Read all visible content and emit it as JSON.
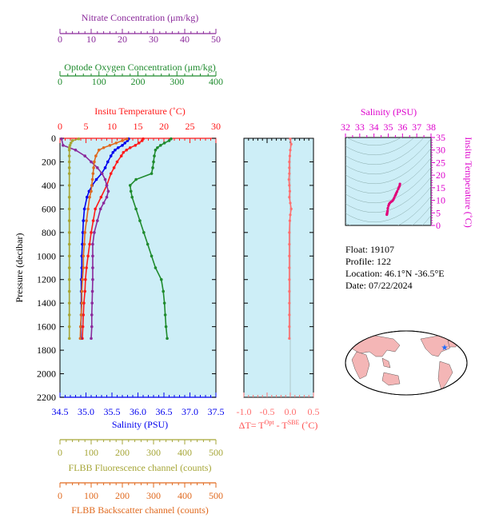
{
  "colors": {
    "nitrate": "#8b2a9b",
    "oxygen": "#1f8b2e",
    "temperature": "#ff1a1a",
    "salinity": "#0000ee",
    "fluorescence": "#a6a637",
    "backscatter": "#e0691e",
    "delta": "#ff7070",
    "panel_bg": "#cdeef7",
    "magenta": "#dd00cc"
  },
  "info": {
    "float_line": "Float:  19107",
    "profile_line": "Profile:  122",
    "location_line": "Location:  46.1°N  -36.5°E",
    "date_line": "Date:  07/22/2024"
  },
  "chart_data": [
    {
      "type": "line",
      "name": "main-profile",
      "ylabel": "Pressure (decibar)",
      "ylim": [
        0,
        2200
      ],
      "y_ticks": [
        "0",
        "200",
        "400",
        "600",
        "800",
        "1000",
        "1200",
        "1400",
        "1600",
        "1800",
        "2000",
        "2200"
      ],
      "axes": {
        "nitrate": {
          "label": "Nitrate Concentration (μm/kg)",
          "range": [
            0,
            50
          ],
          "ticks": [
            "0",
            "10",
            "20",
            "30",
            "40",
            "50"
          ]
        },
        "oxygen": {
          "label": "Optode Oxygen Concentration (μm/kg)",
          "range": [
            0,
            400
          ],
          "ticks": [
            "0",
            "100",
            "200",
            "300",
            "400"
          ]
        },
        "temperature": {
          "label": "Insitu Temperature (˚C)",
          "range": [
            0,
            30
          ],
          "ticks": [
            "0",
            "5",
            "10",
            "15",
            "20",
            "25",
            "30"
          ]
        },
        "salinity": {
          "label": "Salinity (PSU)",
          "range": [
            34.5,
            37.5
          ],
          "ticks": [
            "34.5",
            "35.0",
            "35.5",
            "36.0",
            "36.5",
            "37.0",
            "37.5"
          ]
        },
        "fluorescence": {
          "label": "FLBB Fluorescence channel (counts)",
          "range": [
            0,
            500
          ],
          "ticks": [
            "0",
            "100",
            "200",
            "300",
            "400",
            "500"
          ]
        },
        "backscatter": {
          "label": "FLBB Backscatter channel (counts)",
          "range": [
            0,
            500
          ],
          "ticks": [
            "0",
            "100",
            "200",
            "300",
            "400",
            "500"
          ]
        }
      },
      "series": [
        {
          "key": "temperature",
          "pressure": [
            5,
            20,
            40,
            60,
            80,
            100,
            120,
            150,
            200,
            250,
            300,
            400,
            500,
            600,
            700,
            800,
            900,
            1000,
            1100,
            1200,
            1300,
            1400,
            1500,
            1600,
            1700
          ],
          "values": [
            16.0,
            15.8,
            15.2,
            14.5,
            13.5,
            12.8,
            12.2,
            11.8,
            11.0,
            10.4,
            9.8,
            9.0,
            7.9,
            6.8,
            6.4,
            6.0,
            5.7,
            5.4,
            5.1,
            4.9,
            4.8,
            4.6,
            4.5,
            4.4,
            4.3
          ]
        },
        {
          "key": "salinity",
          "pressure": [
            5,
            20,
            40,
            60,
            80,
            100,
            120,
            150,
            200,
            250,
            300,
            350,
            400,
            450,
            500,
            600,
            700,
            800,
            900,
            1000,
            1100,
            1200,
            1300,
            1400,
            1500,
            1600,
            1700
          ],
          "values": [
            35.82,
            35.8,
            35.75,
            35.7,
            35.62,
            35.56,
            35.52,
            35.48,
            35.42,
            35.37,
            35.3,
            35.2,
            35.12,
            35.06,
            35.02,
            34.97,
            34.95,
            34.94,
            34.93,
            34.92,
            34.92,
            34.91,
            34.91,
            34.91,
            34.91,
            34.9,
            34.9
          ]
        },
        {
          "key": "oxygen",
          "pressure": [
            5,
            20,
            40,
            60,
            80,
            100,
            150,
            200,
            250,
            300,
            350,
            400,
            450,
            500,
            600,
            700,
            800,
            900,
            1000,
            1100,
            1200,
            1300,
            1400,
            1500,
            1600,
            1700
          ],
          "values": [
            285,
            280,
            268,
            258,
            250,
            245,
            242,
            240,
            238,
            235,
            195,
            180,
            182,
            185,
            195,
            205,
            215,
            225,
            235,
            245,
            260,
            265,
            268,
            270,
            272,
            275
          ]
        },
        {
          "key": "nitrate",
          "pressure": [
            5,
            60,
            80,
            100,
            150,
            200,
            250,
            300,
            350,
            400,
            450,
            500,
            550,
            600,
            700,
            800,
            900,
            1000,
            1100,
            1200,
            1300,
            1400,
            1500,
            1600,
            1700
          ],
          "values": [
            0.5,
            1.0,
            3.0,
            5.0,
            8.0,
            10.0,
            12.0,
            13.5,
            14.5,
            15.0,
            15.5,
            15.0,
            14.0,
            13.0,
            12.0,
            11.0,
            10.5,
            10.5,
            10.5,
            10.5,
            10.4,
            10.3,
            10.2,
            10.2,
            10.0
          ]
        },
        {
          "key": "fluorescence",
          "pressure": [
            5,
            20,
            40,
            60,
            80,
            100,
            150,
            200,
            250,
            300,
            400,
            500,
            600,
            700,
            800,
            900,
            1000,
            1100,
            1200,
            1300,
            1400,
            1500,
            1600,
            1700
          ],
          "values": [
            60,
            40,
            35,
            32,
            30,
            30,
            30,
            30,
            30,
            30,
            30,
            30,
            30,
            30,
            30,
            30,
            30,
            30,
            30,
            30,
            30,
            30,
            30,
            30
          ]
        },
        {
          "key": "backscatter",
          "pressure": [
            5,
            20,
            40,
            60,
            80,
            100,
            150,
            200,
            250,
            300,
            350,
            400,
            450,
            500,
            600,
            700,
            800,
            900,
            1000,
            1100,
            1200,
            1300,
            1400,
            1500,
            1600,
            1700
          ],
          "values": [
            215,
            200,
            180,
            160,
            140,
            125,
            115,
            110,
            108,
            106,
            104,
            102,
            100,
            95,
            90,
            85,
            80,
            78,
            75,
            75,
            72,
            70,
            70,
            68,
            66,
            65
          ]
        }
      ]
    },
    {
      "type": "line",
      "name": "delta-temperature",
      "xlabel": "ΔT= T^Opt - T^SBE (˚C)",
      "xlim": [
        -1.0,
        0.5
      ],
      "x_ticks": [
        "-1.0",
        "-0.5",
        "0.0",
        "0.5"
      ],
      "ylim": [
        0,
        2200
      ],
      "series": [
        {
          "key": "delta",
          "pressure": [
            5,
            50,
            100,
            150,
            200,
            250,
            300,
            350,
            400,
            450,
            500,
            550,
            600,
            650,
            700,
            800,
            900,
            1000,
            1100,
            1200,
            1300,
            1400,
            1500,
            1600,
            1700
          ],
          "values": [
            0.0,
            0.02,
            0.0,
            -0.01,
            -0.02,
            -0.02,
            -0.02,
            -0.03,
            -0.02,
            -0.01,
            -0.02,
            0.0,
            0.02,
            0.0,
            -0.01,
            -0.02,
            -0.02,
            -0.02,
            -0.02,
            -0.02,
            -0.02,
            -0.02,
            -0.02,
            -0.02,
            -0.02
          ]
        }
      ]
    },
    {
      "type": "scatter",
      "name": "ts-diagram",
      "title": "Salinity (PSU)",
      "ylabel": "Insitu Temperature (˚C)",
      "xlim": [
        32,
        38
      ],
      "ylim": [
        0,
        35
      ],
      "x_ticks": [
        "32",
        "33",
        "34",
        "35",
        "36",
        "37",
        "38"
      ],
      "y_ticks": [
        "0",
        "5",
        "10",
        "15",
        "20",
        "25",
        "30",
        "35"
      ],
      "points_s": [
        34.9,
        34.91,
        34.92,
        34.93,
        34.95,
        34.97,
        35.02,
        35.06,
        35.12,
        35.2,
        35.3,
        35.37,
        35.42,
        35.48,
        35.52,
        35.56,
        35.62,
        35.7,
        35.75,
        35.8,
        35.82
      ],
      "points_t": [
        4.3,
        4.5,
        4.8,
        5.1,
        5.7,
        6.8,
        7.9,
        8.5,
        9.0,
        9.4,
        9.8,
        10.4,
        11.0,
        11.8,
        12.2,
        12.8,
        13.5,
        14.5,
        15.2,
        15.8,
        16.5
      ]
    },
    {
      "type": "scatter",
      "name": "world-map",
      "marker": {
        "lat": 46.1,
        "lon": -36.5
      }
    }
  ]
}
